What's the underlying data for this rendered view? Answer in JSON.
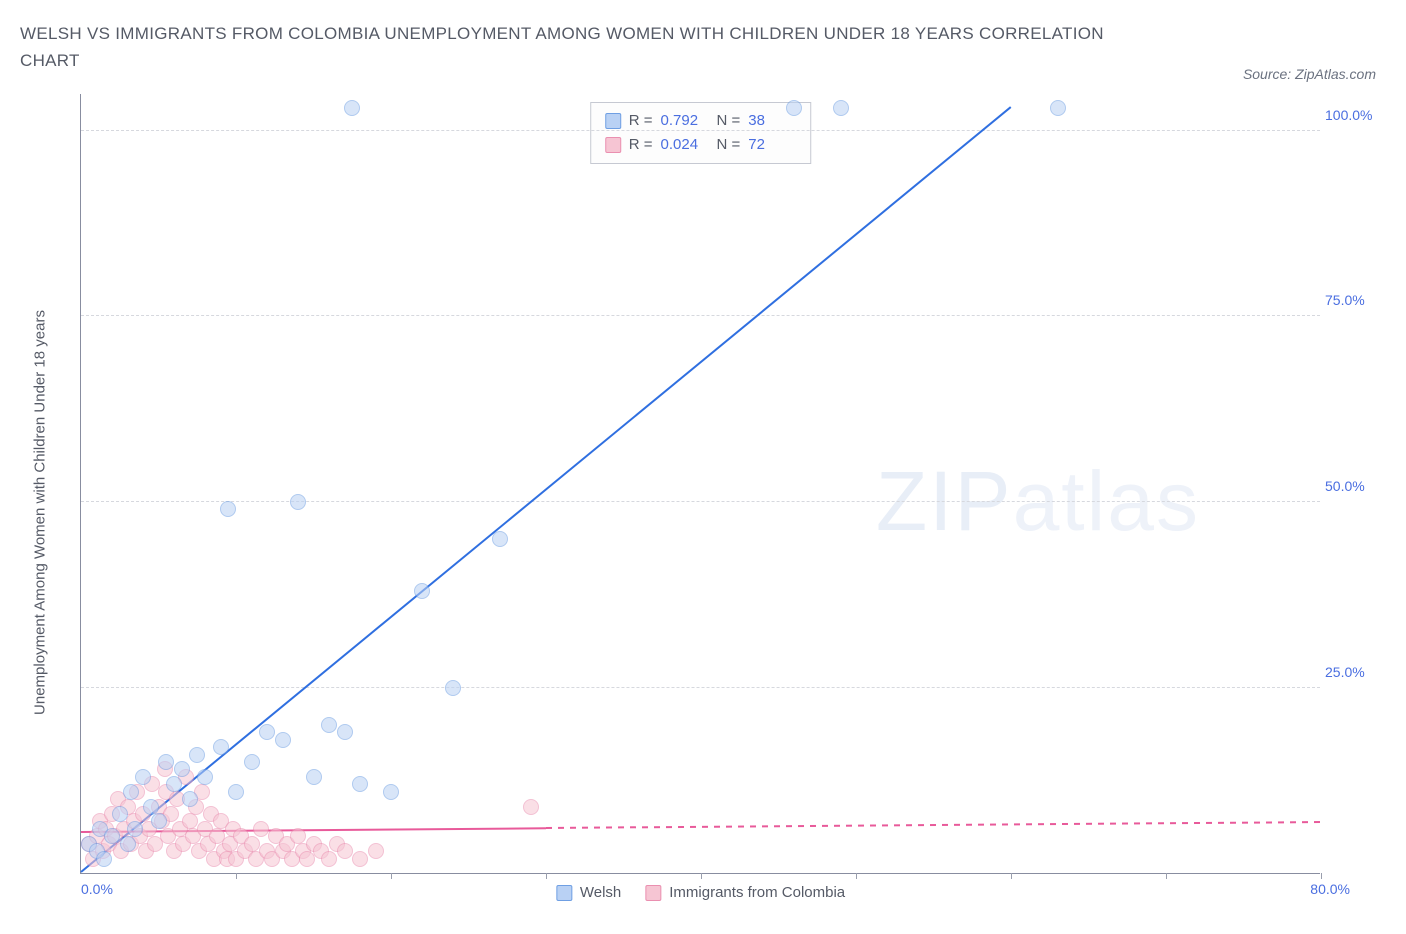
{
  "title_line1": "WELSH VS IMMIGRANTS FROM COLOMBIA UNEMPLOYMENT AMONG WOMEN WITH CHILDREN UNDER 18 YEARS CORRELATION",
  "title_line2": "CHART",
  "source_label": "Source: ZipAtlas.com",
  "y_axis_label": "Unemployment Among Women with Children Under 18 years",
  "watermark_a": "ZIP",
  "watermark_b": "atlas",
  "x_axis": {
    "min": 0,
    "max": 80,
    "origin_label": "0.0%",
    "max_label": "80.0%",
    "tick_step": 10
  },
  "y_axis": {
    "min": 0,
    "max": 105,
    "ticks": [
      {
        "v": 25,
        "label": "25.0%"
      },
      {
        "v": 50,
        "label": "50.0%"
      },
      {
        "v": 75,
        "label": "75.0%"
      },
      {
        "v": 100,
        "label": "100.0%"
      }
    ]
  },
  "series": {
    "welsh": {
      "label": "Welsh",
      "fill": "#b9d1f4",
      "stroke": "#6f9fe3",
      "trend_color": "#2f6fe0",
      "R": "0.792",
      "N": "38",
      "trend": {
        "x1": 0,
        "y1": 0,
        "x2_solid": 60,
        "y2_solid": 103,
        "x2_dash": 60,
        "y2_dash": 103
      },
      "points": [
        {
          "x": 0.5,
          "y": 4
        },
        {
          "x": 1,
          "y": 3
        },
        {
          "x": 1.2,
          "y": 6
        },
        {
          "x": 1.5,
          "y": 2
        },
        {
          "x": 2,
          "y": 5
        },
        {
          "x": 2.5,
          "y": 8
        },
        {
          "x": 3,
          "y": 4
        },
        {
          "x": 3.2,
          "y": 11
        },
        {
          "x": 3.5,
          "y": 6
        },
        {
          "x": 4,
          "y": 13
        },
        {
          "x": 4.5,
          "y": 9
        },
        {
          "x": 5,
          "y": 7
        },
        {
          "x": 5.5,
          "y": 15
        },
        {
          "x": 6,
          "y": 12
        },
        {
          "x": 6.5,
          "y": 14
        },
        {
          "x": 7,
          "y": 10
        },
        {
          "x": 7.5,
          "y": 16
        },
        {
          "x": 8,
          "y": 13
        },
        {
          "x": 9,
          "y": 17
        },
        {
          "x": 9.5,
          "y": 49
        },
        {
          "x": 10,
          "y": 11
        },
        {
          "x": 11,
          "y": 15
        },
        {
          "x": 12,
          "y": 19
        },
        {
          "x": 13,
          "y": 18
        },
        {
          "x": 14,
          "y": 50
        },
        {
          "x": 15,
          "y": 13
        },
        {
          "x": 16,
          "y": 20
        },
        {
          "x": 17,
          "y": 19
        },
        {
          "x": 17.5,
          "y": 103
        },
        {
          "x": 18,
          "y": 12
        },
        {
          "x": 20,
          "y": 11
        },
        {
          "x": 22,
          "y": 38
        },
        {
          "x": 24,
          "y": 25
        },
        {
          "x": 27,
          "y": 45
        },
        {
          "x": 46,
          "y": 103
        },
        {
          "x": 49,
          "y": 103
        },
        {
          "x": 63,
          "y": 103
        }
      ]
    },
    "colombia": {
      "label": "Immigrants from Colombia",
      "fill": "#f6c5d3",
      "stroke": "#ea8fb0",
      "trend_color": "#e85a9a",
      "R": "0.024",
      "N": "72",
      "trend": {
        "x1": 0,
        "y1": 5.5,
        "x2_solid": 30,
        "y2_solid": 6.0,
        "x2_dash": 80,
        "y2_dash": 6.8
      },
      "points": [
        {
          "x": 0.5,
          "y": 4
        },
        {
          "x": 0.8,
          "y": 2
        },
        {
          "x": 1,
          "y": 5
        },
        {
          "x": 1.2,
          "y": 7
        },
        {
          "x": 1.4,
          "y": 3
        },
        {
          "x": 1.6,
          "y": 6
        },
        {
          "x": 1.8,
          "y": 4
        },
        {
          "x": 2,
          "y": 8
        },
        {
          "x": 2.2,
          "y": 5
        },
        {
          "x": 2.4,
          "y": 10
        },
        {
          "x": 2.6,
          "y": 3
        },
        {
          "x": 2.8,
          "y": 6
        },
        {
          "x": 3,
          "y": 9
        },
        {
          "x": 3.2,
          "y": 4
        },
        {
          "x": 3.4,
          "y": 7
        },
        {
          "x": 3.6,
          "y": 11
        },
        {
          "x": 3.8,
          "y": 5
        },
        {
          "x": 4,
          "y": 8
        },
        {
          "x": 4.2,
          "y": 3
        },
        {
          "x": 4.4,
          "y": 6
        },
        {
          "x": 4.6,
          "y": 12
        },
        {
          "x": 4.8,
          "y": 4
        },
        {
          "x": 5,
          "y": 9
        },
        {
          "x": 5.2,
          "y": 7
        },
        {
          "x": 5.4,
          "y": 14
        },
        {
          "x": 5.5,
          "y": 11
        },
        {
          "x": 5.6,
          "y": 5
        },
        {
          "x": 5.8,
          "y": 8
        },
        {
          "x": 6,
          "y": 3
        },
        {
          "x": 6.2,
          "y": 10
        },
        {
          "x": 6.4,
          "y": 6
        },
        {
          "x": 6.6,
          "y": 4
        },
        {
          "x": 6.8,
          "y": 13
        },
        {
          "x": 7,
          "y": 7
        },
        {
          "x": 7.2,
          "y": 5
        },
        {
          "x": 7.4,
          "y": 9
        },
        {
          "x": 7.6,
          "y": 3
        },
        {
          "x": 7.8,
          "y": 11
        },
        {
          "x": 8,
          "y": 6
        },
        {
          "x": 8.2,
          "y": 4
        },
        {
          "x": 8.4,
          "y": 8
        },
        {
          "x": 8.6,
          "y": 2
        },
        {
          "x": 8.8,
          "y": 5
        },
        {
          "x": 9,
          "y": 7
        },
        {
          "x": 9.2,
          "y": 3
        },
        {
          "x": 9.4,
          "y": 2
        },
        {
          "x": 9.6,
          "y": 4
        },
        {
          "x": 9.8,
          "y": 6
        },
        {
          "x": 10,
          "y": 2
        },
        {
          "x": 10.3,
          "y": 5
        },
        {
          "x": 10.6,
          "y": 3
        },
        {
          "x": 11,
          "y": 4
        },
        {
          "x": 11.3,
          "y": 2
        },
        {
          "x": 11.6,
          "y": 6
        },
        {
          "x": 12,
          "y": 3
        },
        {
          "x": 12.3,
          "y": 2
        },
        {
          "x": 12.6,
          "y": 5
        },
        {
          "x": 13,
          "y": 3
        },
        {
          "x": 13.3,
          "y": 4
        },
        {
          "x": 13.6,
          "y": 2
        },
        {
          "x": 14,
          "y": 5
        },
        {
          "x": 14.3,
          "y": 3
        },
        {
          "x": 14.6,
          "y": 2
        },
        {
          "x": 15,
          "y": 4
        },
        {
          "x": 15.5,
          "y": 3
        },
        {
          "x": 16,
          "y": 2
        },
        {
          "x": 16.5,
          "y": 4
        },
        {
          "x": 17,
          "y": 3
        },
        {
          "x": 18,
          "y": 2
        },
        {
          "x": 19,
          "y": 3
        },
        {
          "x": 29,
          "y": 9
        }
      ]
    }
  },
  "marker_radius": 8,
  "marker_alpha": 0.55
}
